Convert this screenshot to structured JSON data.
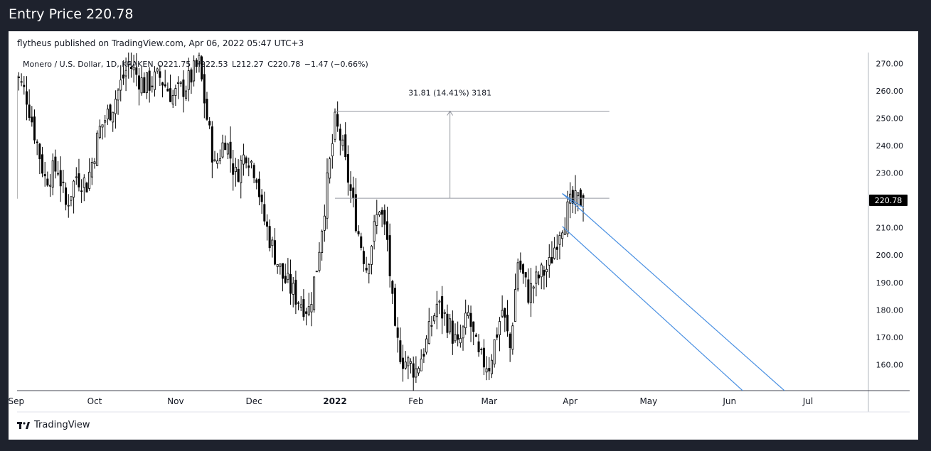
{
  "page": {
    "title": "Entry Price 220.78"
  },
  "header": {
    "published": "flytheus published on TradingView.com, Apr 06, 2022 05:47 UTC+3"
  },
  "legend": {
    "symbol": "Monero / U.S. Dollar, 1D, KRAKEN",
    "open": "O221.75",
    "high": "H222.53",
    "low": "L212.27",
    "close": "C220.78",
    "change": "−1.47 (−0.66%)"
  },
  "footer": {
    "brand": "TradingView"
  },
  "chart_data": {
    "type": "candlestick",
    "title": "",
    "y_ticks": [
      "160.00",
      "170.00",
      "180.00",
      "190.00",
      "200.00",
      "210.00",
      "220.00",
      "230.00",
      "240.00",
      "250.00",
      "260.00",
      "270.00"
    ],
    "ylim": [
      150.5,
      274
    ],
    "x_ticks": [
      {
        "label": "Sep",
        "date": "2021-09-01"
      },
      {
        "label": "Oct",
        "date": "2021-10-01"
      },
      {
        "label": "Nov",
        "date": "2021-11-01"
      },
      {
        "label": "Dec",
        "date": "2021-12-01"
      },
      {
        "label": "2022",
        "date": "2022-01-01"
      },
      {
        "label": "Feb",
        "date": "2022-02-01"
      },
      {
        "label": "Mar",
        "date": "2022-03-01"
      },
      {
        "label": "Apr",
        "date": "2022-04-01"
      },
      {
        "label": "May",
        "date": "2022-05-01"
      },
      {
        "label": "Jun",
        "date": "2022-06-01"
      },
      {
        "label": "Jul",
        "date": "2022-07-01"
      }
    ],
    "last_price": "220.78",
    "colors": {
      "up": "#ffffff",
      "down": "#000000",
      "outline": "#000000",
      "channel": "#4a90e2",
      "measure": "#9598a1",
      "price_tag": "#000000"
    },
    "anchors": [
      [
        "2021-09-01",
        266
      ],
      [
        "2021-09-05",
        258
      ],
      [
        "2021-09-08",
        245
      ],
      [
        "2021-09-12",
        228
      ],
      [
        "2021-09-17",
        232
      ],
      [
        "2021-09-20",
        218
      ],
      [
        "2021-09-24",
        229
      ],
      [
        "2021-09-28",
        226
      ],
      [
        "2021-10-03",
        246
      ],
      [
        "2021-10-08",
        255
      ],
      [
        "2021-10-14",
        270
      ],
      [
        "2021-10-20",
        262
      ],
      [
        "2021-10-26",
        265
      ],
      [
        "2021-10-31",
        258
      ],
      [
        "2021-11-05",
        262
      ],
      [
        "2021-11-10",
        270
      ],
      [
        "2021-11-13",
        250
      ],
      [
        "2021-11-16",
        232
      ],
      [
        "2021-11-20",
        243
      ],
      [
        "2021-11-24",
        229
      ],
      [
        "2021-11-28",
        238
      ],
      [
        "2021-12-02",
        230
      ],
      [
        "2021-12-04",
        216
      ],
      [
        "2021-12-08",
        203
      ],
      [
        "2021-12-12",
        192
      ],
      [
        "2021-12-17",
        185
      ],
      [
        "2021-12-22",
        180
      ],
      [
        "2021-12-25",
        196
      ],
      [
        "2021-12-29",
        226
      ],
      [
        "2022-01-01",
        248
      ],
      [
        "2022-01-03",
        243
      ],
      [
        "2022-01-06",
        228
      ],
      [
        "2022-01-10",
        208
      ],
      [
        "2022-01-13",
        196
      ],
      [
        "2022-01-18",
        218
      ],
      [
        "2022-01-21",
        205
      ],
      [
        "2022-01-24",
        170
      ],
      [
        "2022-01-27",
        162
      ],
      [
        "2022-02-01",
        158
      ],
      [
        "2022-02-05",
        168
      ],
      [
        "2022-02-09",
        182
      ],
      [
        "2022-02-13",
        176
      ],
      [
        "2022-02-17",
        166
      ],
      [
        "2022-02-21",
        178
      ],
      [
        "2022-02-25",
        162
      ],
      [
        "2022-03-01",
        160
      ],
      [
        "2022-03-03",
        168
      ],
      [
        "2022-03-06",
        180
      ],
      [
        "2022-03-09",
        166
      ],
      [
        "2022-03-12",
        198
      ],
      [
        "2022-03-16",
        186
      ],
      [
        "2022-03-20",
        192
      ],
      [
        "2022-03-24",
        196
      ],
      [
        "2022-03-28",
        210
      ],
      [
        "2022-04-01",
        218
      ],
      [
        "2022-04-06",
        220.78
      ]
    ],
    "drawings": {
      "measure": {
        "label": "31.81 (14.41%) 3181",
        "from_date": "2022-01-01",
        "to_date": "2022-04-16",
        "low": 220.78,
        "high": 252.59,
        "arrow_date": "2022-02-14"
      },
      "channel": {
        "upper": [
          [
            "2022-03-29",
            222.5
          ],
          [
            "2022-06-22",
            150.5
          ]
        ],
        "lower": [
          [
            "2022-03-29",
            210.5
          ],
          [
            "2022-06-06",
            150.5
          ]
        ]
      }
    }
  }
}
